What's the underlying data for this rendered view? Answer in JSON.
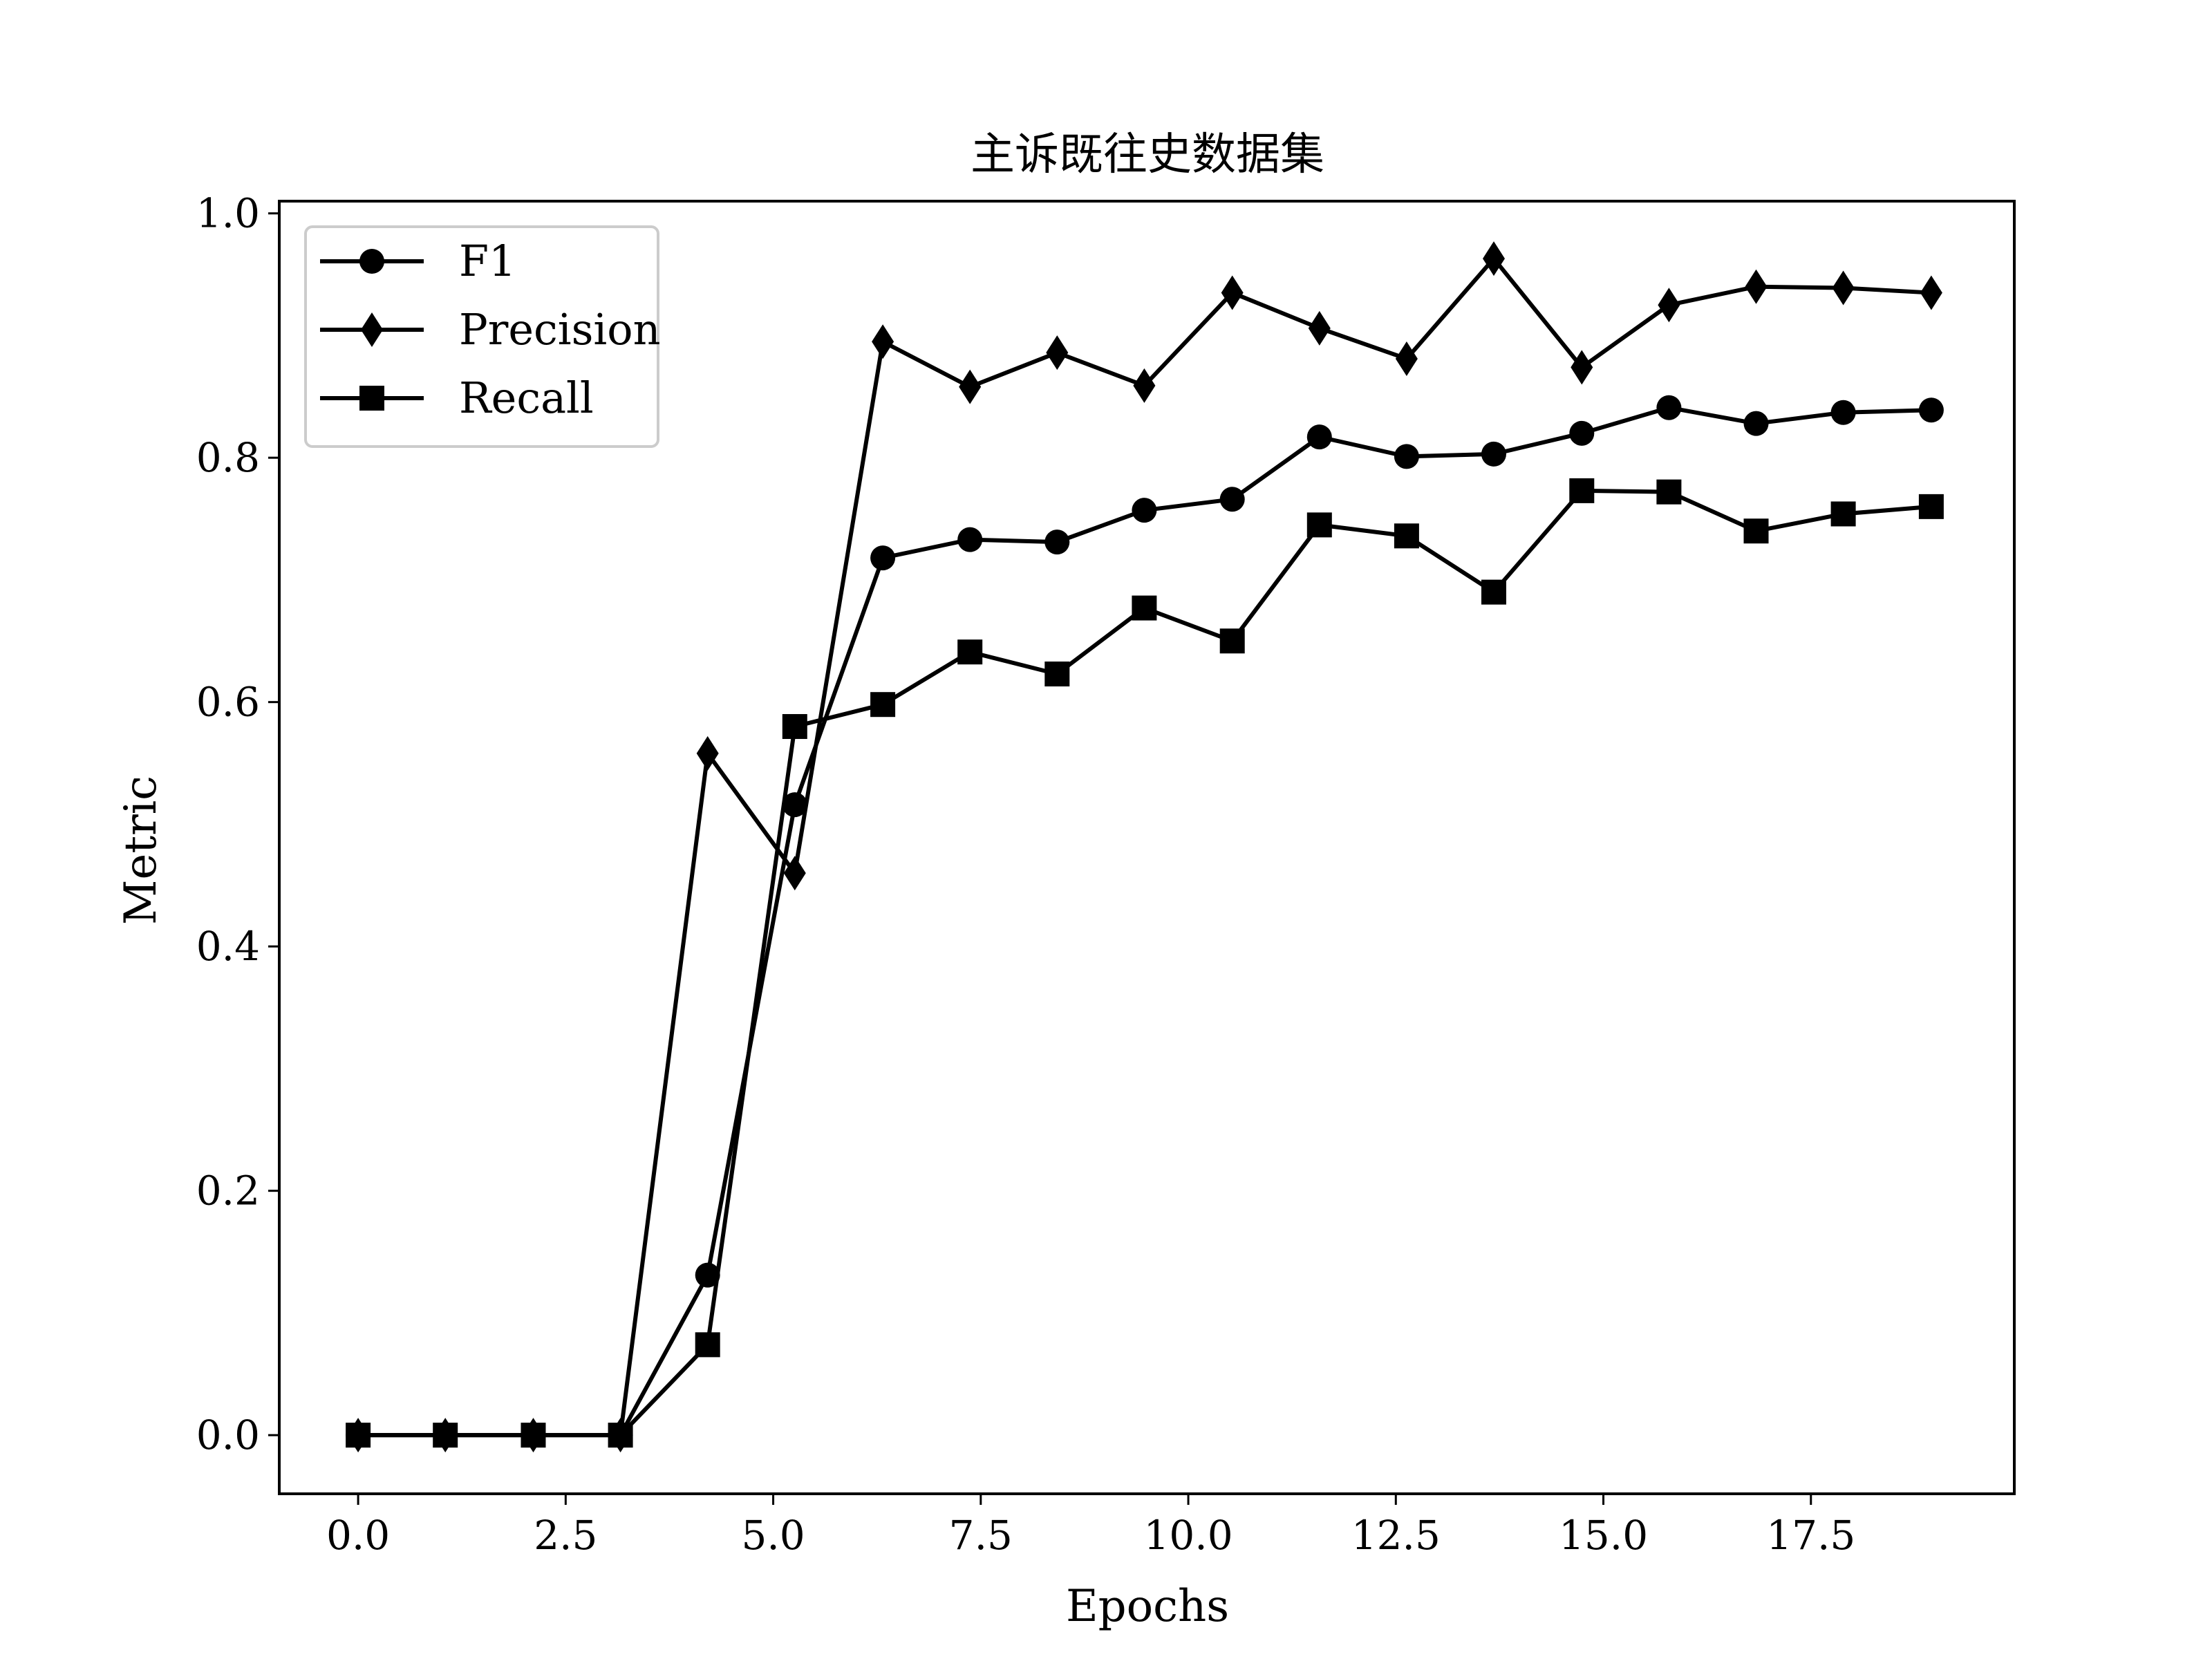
{
  "chart_data": {
    "type": "line",
    "title": "主诉既往史数据集",
    "xlabel": "Epochs",
    "ylabel": "Metric",
    "xlim": [
      -0.95,
      19.95
    ],
    "ylim": [
      -0.048,
      1.01
    ],
    "xticks": [
      0,
      2.5,
      5,
      7.5,
      10,
      12.5,
      15,
      17.5
    ],
    "xtick_labels": [
      "0.0",
      "2.5",
      "5.0",
      "7.5",
      "10.0",
      "12.5",
      "15.0",
      "17.5"
    ],
    "yticks": [
      0,
      0.2,
      0.4,
      0.6,
      0.8,
      1.0
    ],
    "ytick_labels": [
      "0.0",
      "0.2",
      "0.4",
      "0.6",
      "0.8",
      "1.0"
    ],
    "grid": false,
    "legend": "top-left",
    "x": [
      0,
      1.05,
      2.11,
      3.16,
      4.21,
      5.26,
      6.32,
      7.37,
      8.42,
      9.47,
      10.53,
      11.58,
      12.63,
      13.68,
      14.74,
      15.79,
      16.84,
      17.89,
      18.95
    ],
    "series": [
      {
        "name": "F1",
        "marker": "circle",
        "color": "#000000",
        "values": [
          0,
          0,
          0,
          0,
          0.131,
          0.516,
          0.718,
          0.733,
          0.731,
          0.757,
          0.766,
          0.817,
          0.801,
          0.803,
          0.82,
          0.841,
          0.828,
          0.837,
          0.839
        ]
      },
      {
        "name": "Precision",
        "marker": "diamond",
        "color": "#000000",
        "values": [
          0,
          0,
          0,
          0,
          0.558,
          0.46,
          0.895,
          0.858,
          0.886,
          0.859,
          0.935,
          0.906,
          0.881,
          0.963,
          0.874,
          0.925,
          0.94,
          0.939,
          0.935
        ]
      },
      {
        "name": "Recall",
        "marker": "square",
        "color": "#000000",
        "values": [
          0,
          0,
          0,
          0,
          0.074,
          0.58,
          0.598,
          0.641,
          0.623,
          0.677,
          0.65,
          0.745,
          0.736,
          0.69,
          0.773,
          0.772,
          0.74,
          0.754,
          0.76
        ]
      }
    ]
  }
}
